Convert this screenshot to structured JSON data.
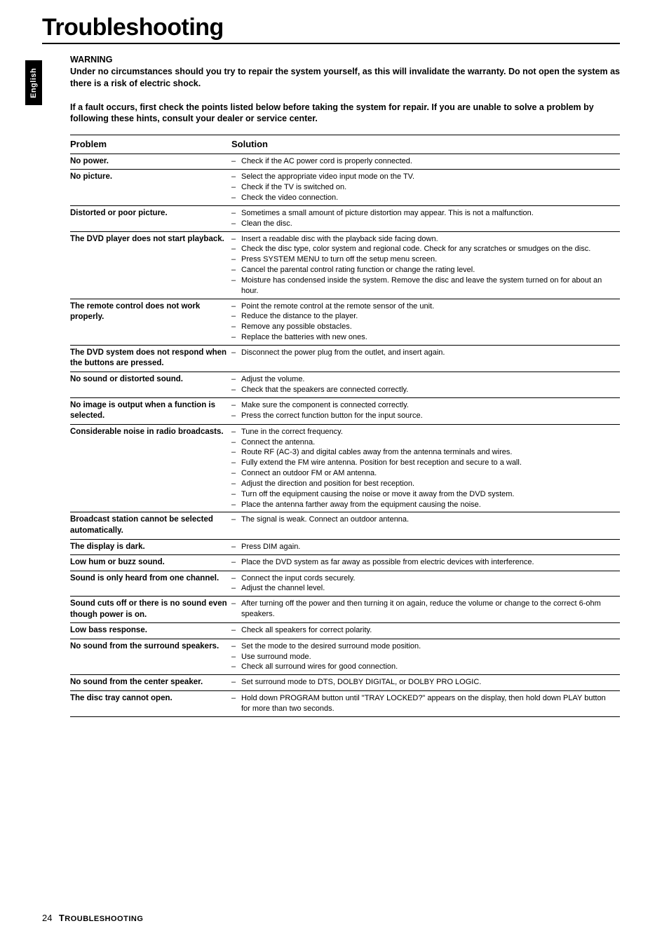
{
  "sideTab": "English",
  "title": "Troubleshooting",
  "warning": {
    "heading": "WARNING",
    "para1": "Under no circumstances should you try to repair the system yourself, as this will invalidate the warranty.  Do not open the system as there is a risk of electric shock.",
    "para2": "If a fault occurs, first check the points listed below before taking the system for repair. If you are unable to solve a problem by following these hints, consult your dealer or service center."
  },
  "table": {
    "colProblem": "Problem",
    "colSolution": "Solution",
    "rows": [
      {
        "problem": "No power.",
        "solutions": [
          "Check if the AC power cord is properly connected."
        ]
      },
      {
        "problem": "No picture.",
        "solutions": [
          "Select the appropriate video input mode on the TV.",
          "Check if the TV is switched on.",
          "Check the video connection."
        ]
      },
      {
        "problem": "Distorted or poor picture.",
        "solutions": [
          "Sometimes a small amount of picture distortion may appear.  This is not a malfunction.",
          "Clean the disc."
        ]
      },
      {
        "problem": "The DVD player does not start playback.",
        "solutions": [
          "Insert a readable disc with the playback side facing down.",
          "Check the disc type, color system and regional code. Check for any scratches or smudges on the disc.",
          "Press SYSTEM MENU to turn off the setup menu screen.",
          "Cancel the parental control rating function or change the rating level.",
          "Moisture has condensed inside the system. Remove the disc and leave the system turned on for about an hour."
        ]
      },
      {
        "problem": "The remote control does not work properly.",
        "solutions": [
          "Point the remote control at the remote sensor of the unit.",
          "Reduce the distance to the player.",
          "Remove any possible obstacles.",
          "Replace the batteries with new ones."
        ]
      },
      {
        "problem": "The DVD system does not respond when the buttons are pressed.",
        "solutions": [
          "Disconnect the power plug from the outlet, and insert again."
        ]
      },
      {
        "problem": "No sound or distorted sound.",
        "solutions": [
          "Adjust the volume.",
          "Check that the speakers are connected correctly."
        ]
      },
      {
        "problem": "No image is output when a function is selected.",
        "solutions": [
          "Make sure the component is connected correctly.",
          "Press the correct function button for the input source."
        ]
      },
      {
        "problem": "Considerable noise in radio broadcasts.",
        "solutions": [
          "Tune in the correct frequency.",
          "Connect the antenna.",
          "Route RF (AC-3) and digital cables away from the antenna terminals and wires.",
          "Fully extend the FM wire antenna. Position for best reception and secure to a wall.",
          "Connect an outdoor FM or AM antenna.",
          "Adjust the direction and position for best reception.",
          "Turn off the equipment causing the noise or move it away from the DVD system.",
          "Place the antenna farther away from the equipment causing the noise."
        ]
      },
      {
        "problem": "Broadcast station cannot be selected automatically.",
        "solutions": [
          "The signal is weak.  Connect an outdoor antenna."
        ]
      },
      {
        "problem": "The display is dark.",
        "solutions": [
          "Press DIM again."
        ]
      },
      {
        "problem": "Low hum or buzz sound.",
        "solutions": [
          "Place the DVD system as far away as possible from electric devices with interference."
        ]
      },
      {
        "problem": "Sound is only heard from one channel.",
        "solutions": [
          "Connect the input cords securely.",
          "Adjust the channel level."
        ]
      },
      {
        "problem": "Sound cuts off or there is no sound even though power is on.",
        "solutions": [
          "After turning off the power and then turning it on again, reduce the volume or change to the correct 6-ohm speakers."
        ]
      },
      {
        "problem": "Low bass response.",
        "solutions": [
          "Check all speakers for correct polarity."
        ]
      },
      {
        "problem": "No sound from the surround speakers.",
        "solutions": [
          "Set the mode to the desired surround mode position.",
          "Use surround mode.",
          "Check all surround wires for good connection."
        ]
      },
      {
        "problem": "No sound from the center speaker.",
        "solutions": [
          "Set surround mode to DTS, DOLBY DIGITAL, or DOLBY PRO LOGIC."
        ]
      },
      {
        "problem": "The disc tray cannot open.",
        "solutions": [
          "Hold down PROGRAM button until \"TRAY LOCKED?\" appears on the display, then hold down PLAY button for more than two seconds."
        ]
      }
    ]
  },
  "footer": {
    "pageNumber": "24",
    "sectionFirst": "T",
    "sectionRest": "ROUBLESHOOTING"
  }
}
